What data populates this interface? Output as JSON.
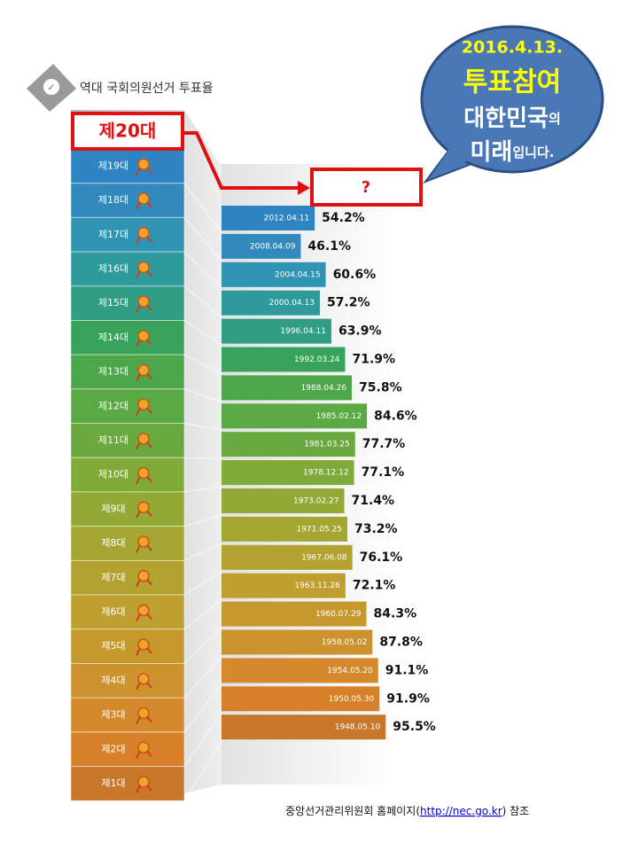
{
  "chart_data": {
    "type": "bar",
    "orientation": "horizontal",
    "title": "역대 국회의원선거 투표율",
    "next_label": "제20대",
    "next_value": "?",
    "categories": [
      "제19대",
      "제18대",
      "제17대",
      "제16대",
      "제15대",
      "제14대",
      "제13대",
      "제12대",
      "제11대",
      "제10대",
      "제9대",
      "제8대",
      "제7대",
      "제6대",
      "제5대",
      "제4대",
      "제3대",
      "제2대",
      "제1대"
    ],
    "date_labels": [
      "2012.04.11",
      "2008.04.09",
      "2004.04.15",
      "2000.04.13",
      "1996.04.11",
      "1992.03.24",
      "1988.04.26",
      "1985.02.12",
      "1981.03.25",
      "1978.12.12",
      "1973.02.27",
      "1971.05.25",
      "1967.06.08",
      "1963.11.26",
      "1960.07.29",
      "1958.05.02",
      "1954.05.20",
      "1950.05.30",
      "1948.05.10"
    ],
    "values": [
      54.2,
      46.1,
      60.6,
      57.2,
      63.9,
      71.9,
      75.8,
      84.6,
      77.7,
      77.1,
      71.4,
      73.2,
      76.1,
      72.1,
      84.3,
      87.8,
      91.1,
      91.9,
      95.5
    ],
    "value_labels": [
      "54.2%",
      "46.1%",
      "60.6%",
      "57.2%",
      "63.9%",
      "71.9%",
      "75.8%",
      "84.6%",
      "77.7%",
      "77.1%",
      "71.4%",
      "73.2%",
      "76.1%",
      "72.1%",
      "84.3%",
      "87.8%",
      "91.1%",
      "91.9%",
      "95.5%"
    ],
    "colors": [
      "#2f84c4",
      "#3189bd",
      "#2f93b3",
      "#2e9a9e",
      "#2f9e84",
      "#39a35c",
      "#4da74a",
      "#5ba945",
      "#6ba940",
      "#80aa39",
      "#93a935",
      "#a4a733",
      "#b2a331",
      "#be9f30",
      "#c6992f",
      "#cc922e",
      "#d3892c",
      "#d6812a",
      "#c8772a"
    ],
    "xlim": [
      0,
      100
    ]
  },
  "bubble": {
    "date": "2016.4.13.",
    "slogan": "투표참여",
    "line3": [
      "대한민국",
      "의"
    ],
    "line4": [
      "미래",
      "입니다."
    ]
  },
  "footer": [
    "중앙선거관리위원회 홈페이지(",
    "http://nec.go.kr",
    ")   참조"
  ]
}
